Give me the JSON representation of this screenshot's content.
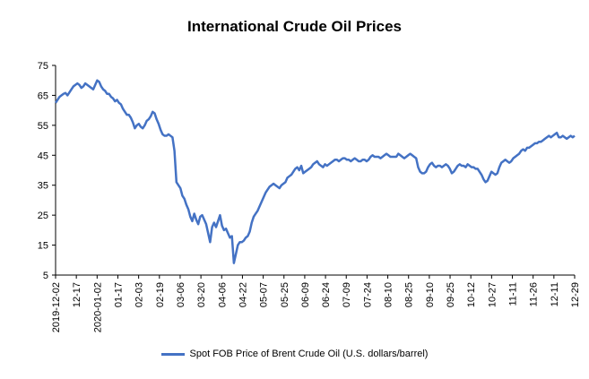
{
  "chart_data": {
    "type": "line",
    "title": "International Crude Oil Prices",
    "xlabel": "",
    "ylabel": "",
    "ylim": [
      5,
      75
    ],
    "yticks": [
      5,
      15,
      25,
      35,
      45,
      55,
      65,
      75
    ],
    "xticks": [
      "2019-12-02",
      "12-17",
      "2020-01-02",
      "01-17",
      "02-03",
      "02-19",
      "03-06",
      "03-20",
      "04-06",
      "04-22",
      "05-07",
      "05-25",
      "06-09",
      "06-24",
      "07-09",
      "07-24",
      "08-10",
      "08-25",
      "09-10",
      "09-25",
      "10-12",
      "10-27",
      "11-11",
      "11-26",
      "12-11",
      "12-29"
    ],
    "grid": false,
    "legend_position": "bottom",
    "series": [
      {
        "name": "Spot FOB Price of Brent Crude Oil (U.S. dollars/barrel)",
        "color": "#4472C4",
        "values": [
          62.5,
          63.5,
          64.5,
          65.0,
          65.5,
          65.8,
          65.0,
          66.0,
          67.0,
          68.0,
          68.5,
          69.0,
          68.5,
          67.5,
          68.0,
          69.0,
          68.5,
          68.0,
          67.5,
          67.0,
          68.5,
          70.0,
          69.5,
          68.0,
          67.0,
          66.5,
          65.5,
          65.5,
          64.5,
          64.0,
          63.0,
          63.5,
          62.5,
          62.0,
          60.5,
          59.5,
          58.5,
          58.5,
          57.5,
          56.0,
          54.0,
          55.0,
          55.5,
          54.5,
          54.0,
          55.0,
          56.5,
          57.0,
          58.0,
          59.5,
          59.0,
          57.0,
          55.5,
          53.5,
          52.0,
          51.5,
          51.5,
          52.0,
          51.5,
          51.0,
          46.5,
          36.0,
          35.0,
          34.0,
          31.5,
          30.5,
          28.5,
          27.0,
          24.5,
          23.0,
          25.5,
          23.5,
          22.0,
          24.5,
          25.0,
          23.5,
          22.0,
          19.0,
          16.0,
          21.0,
          22.5,
          21.0,
          23.0,
          25.0,
          21.5,
          20.0,
          20.5,
          19.0,
          17.5,
          18.0,
          9.0,
          12.0,
          15.0,
          16.0,
          16.0,
          16.5,
          17.5,
          18.0,
          19.5,
          22.5,
          24.5,
          25.5,
          26.5,
          28.0,
          29.5,
          31.0,
          32.5,
          33.5,
          34.5,
          35.0,
          35.5,
          35.0,
          34.5,
          34.0,
          35.0,
          35.5,
          36.0,
          37.5,
          38.0,
          38.5,
          39.5,
          40.5,
          41.0,
          40.0,
          41.5,
          39.0,
          39.5,
          40.0,
          40.5,
          41.0,
          42.0,
          42.5,
          43.0,
          42.0,
          41.5,
          41.0,
          42.0,
          41.5,
          42.0,
          42.5,
          43.0,
          43.5,
          43.5,
          43.0,
          43.5,
          44.0,
          44.0,
          43.5,
          43.5,
          43.0,
          43.5,
          44.0,
          43.5,
          43.0,
          43.0,
          43.5,
          43.5,
          43.0,
          43.5,
          44.5,
          45.0,
          44.5,
          44.5,
          44.5,
          44.0,
          44.5,
          45.0,
          45.5,
          45.0,
          44.5,
          44.5,
          44.5,
          44.5,
          45.5,
          45.0,
          44.5,
          44.0,
          44.5,
          45.0,
          45.5,
          45.0,
          44.5,
          44.0,
          41.0,
          39.5,
          39.0,
          39.0,
          39.5,
          41.0,
          42.0,
          42.5,
          41.5,
          41.0,
          41.5,
          41.5,
          41.0,
          41.5,
          42.0,
          41.5,
          40.5,
          39.0,
          39.5,
          40.5,
          41.5,
          42.0,
          41.5,
          41.5,
          41.0,
          42.0,
          41.5,
          41.0,
          41.0,
          40.5,
          40.5,
          39.5,
          38.5,
          37.0,
          36.0,
          36.5,
          38.0,
          39.5,
          39.0,
          38.5,
          39.0,
          41.0,
          42.5,
          43.0,
          43.5,
          43.0,
          42.5,
          43.0,
          44.0,
          44.5,
          45.0,
          45.5,
          46.5,
          47.0,
          46.5,
          47.5,
          47.5,
          48.0,
          48.5,
          49.0,
          49.0,
          49.5,
          49.5,
          50.0,
          50.5,
          51.0,
          51.5,
          51.0,
          51.5,
          52.0,
          52.5,
          51.0,
          51.0,
          51.5,
          51.0,
          50.5,
          51.0,
          51.5,
          51.0,
          51.5
        ]
      }
    ]
  }
}
